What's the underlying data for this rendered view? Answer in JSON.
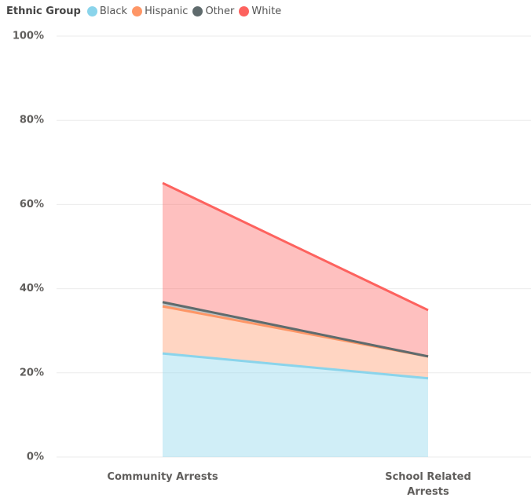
{
  "chart_data": {
    "type": "stacked_area",
    "legend_title": "Ethnic Group",
    "categories": [
      "Community Arrests",
      "School Related Arrests"
    ],
    "series": [
      {
        "name": "Black",
        "color": "#8ad4eb",
        "values": [
          24.6,
          18.7
        ]
      },
      {
        "name": "Hispanic",
        "color": "#fe9666",
        "values": [
          11.2,
          5.2
        ]
      },
      {
        "name": "Other",
        "color": "#5f6b6d",
        "values": [
          1.0,
          0.0
        ]
      },
      {
        "name": "White",
        "color": "#fd625e",
        "values": [
          28.3,
          11.0
        ]
      }
    ],
    "ylim": [
      0,
      100
    ],
    "yticks": [
      {
        "value": 0,
        "label": "0%"
      },
      {
        "value": 20,
        "label": "20%"
      },
      {
        "value": 40,
        "label": "40%"
      },
      {
        "value": 60,
        "label": "60%"
      },
      {
        "value": 80,
        "label": "80%"
      },
      {
        "value": 100,
        "label": "100%"
      }
    ],
    "grid": true,
    "legend": "top-left"
  }
}
